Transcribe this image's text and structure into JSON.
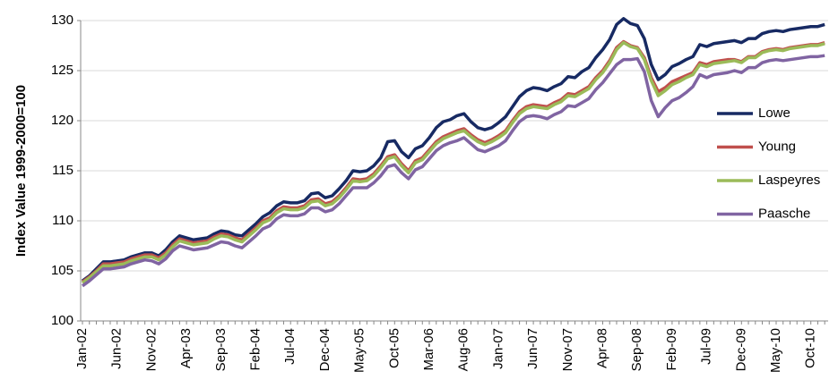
{
  "chart_data": {
    "type": "line",
    "y_label": "Index Value 1999-2000=100",
    "categories": [
      "Jan-02",
      null,
      null,
      null,
      null,
      "Jun-02",
      null,
      null,
      null,
      null,
      "Nov-02",
      null,
      null,
      null,
      null,
      "Apr-03",
      null,
      null,
      null,
      null,
      "Sep-03",
      null,
      null,
      null,
      null,
      "Feb-04",
      null,
      null,
      null,
      null,
      "Jul-04",
      null,
      null,
      null,
      null,
      "Dec-04",
      null,
      null,
      null,
      null,
      "May-05",
      null,
      null,
      null,
      null,
      "Oct-05",
      null,
      null,
      null,
      null,
      "Mar-06",
      null,
      null,
      null,
      null,
      "Aug-06",
      null,
      null,
      null,
      null,
      "Jan-07",
      null,
      null,
      null,
      null,
      "Jun-07",
      null,
      null,
      null,
      null,
      "Nov-07",
      null,
      null,
      null,
      null,
      "Apr-08",
      null,
      null,
      null,
      null,
      "Sep-08",
      null,
      null,
      null,
      null,
      "Feb-09",
      null,
      null,
      null,
      null,
      "Jul-09",
      null,
      null,
      null,
      null,
      "Dec-09",
      null,
      null,
      null,
      null,
      "May-10",
      null,
      null,
      null,
      null,
      "Oct-10",
      null,
      null
    ],
    "series": [
      {
        "name": "Lowe",
        "color": "#172a63",
        "values": [
          104.0,
          104.5,
          105.2,
          105.9,
          105.9,
          106.0,
          106.1,
          106.4,
          106.6,
          106.8,
          106.8,
          106.5,
          107.1,
          107.9,
          108.5,
          108.3,
          108.1,
          108.2,
          108.3,
          108.7,
          109.0,
          108.9,
          108.6,
          108.5,
          109.1,
          109.7,
          110.4,
          110.8,
          111.5,
          111.9,
          111.8,
          111.8,
          112.0,
          112.7,
          112.8,
          112.3,
          112.5,
          113.2,
          114.0,
          115.0,
          114.9,
          115.0,
          115.5,
          116.3,
          117.9,
          118.0,
          116.9,
          116.3,
          117.2,
          117.5,
          118.3,
          119.3,
          119.9,
          120.1,
          120.5,
          120.7,
          119.9,
          119.3,
          119.1,
          119.3,
          119.8,
          120.4,
          121.4,
          122.4,
          123.0,
          123.3,
          123.2,
          123.0,
          123.4,
          123.7,
          124.4,
          124.3,
          124.9,
          125.3,
          126.3,
          127.1,
          128.1,
          129.6,
          130.2,
          129.7,
          129.5,
          128.2,
          125.6,
          124.1,
          124.6,
          125.4,
          125.7,
          126.1,
          126.4,
          127.6,
          127.4,
          127.7,
          127.8,
          127.9,
          128.0,
          127.8,
          128.2,
          128.2,
          128.7,
          128.9,
          129.0,
          128.9,
          129.1,
          129.2,
          129.3,
          129.4,
          129.4,
          129.6
        ]
      },
      {
        "name": "Young",
        "color": "#c0504d",
        "values": [
          103.9,
          104.4,
          105.0,
          105.7,
          105.7,
          105.8,
          105.9,
          106.2,
          106.4,
          106.6,
          106.6,
          106.3,
          106.8,
          107.6,
          108.2,
          108.0,
          107.8,
          107.9,
          108.0,
          108.4,
          108.7,
          108.6,
          108.3,
          108.1,
          108.7,
          109.3,
          110.0,
          110.3,
          111.0,
          111.4,
          111.3,
          111.3,
          111.5,
          112.1,
          112.2,
          111.7,
          111.9,
          112.5,
          113.3,
          114.2,
          114.1,
          114.2,
          114.7,
          115.5,
          116.4,
          116.6,
          115.7,
          115.0,
          116.0,
          116.3,
          117.1,
          117.9,
          118.4,
          118.7,
          119.0,
          119.2,
          118.6,
          118.1,
          117.8,
          118.1,
          118.5,
          119.0,
          120.0,
          120.9,
          121.4,
          121.6,
          121.5,
          121.4,
          121.8,
          122.1,
          122.7,
          122.6,
          123.0,
          123.4,
          124.3,
          125.0,
          126.0,
          127.3,
          127.9,
          127.5,
          127.3,
          126.3,
          124.3,
          122.9,
          123.3,
          123.9,
          124.2,
          124.5,
          124.8,
          125.8,
          125.6,
          125.9,
          126.0,
          126.1,
          126.1,
          125.9,
          126.4,
          126.4,
          126.9,
          127.1,
          127.2,
          127.1,
          127.3,
          127.4,
          127.5,
          127.6,
          127.6,
          127.8
        ]
      },
      {
        "name": "Laspeyres",
        "color": "#9bbb59",
        "values": [
          103.8,
          104.3,
          104.9,
          105.5,
          105.5,
          105.6,
          105.7,
          106.0,
          106.2,
          106.4,
          106.4,
          106.1,
          106.6,
          107.4,
          108.0,
          107.8,
          107.6,
          107.7,
          107.8,
          108.2,
          108.5,
          108.4,
          108.1,
          107.9,
          108.5,
          109.1,
          109.8,
          110.1,
          110.8,
          111.2,
          111.1,
          111.1,
          111.3,
          111.9,
          112.0,
          111.5,
          111.7,
          112.3,
          113.1,
          114.0,
          113.9,
          114.0,
          114.5,
          115.3,
          116.2,
          116.4,
          115.5,
          114.8,
          115.8,
          116.1,
          116.9,
          117.7,
          118.2,
          118.5,
          118.8,
          119.0,
          118.4,
          117.9,
          117.6,
          117.9,
          118.3,
          118.8,
          119.8,
          120.7,
          121.2,
          121.4,
          121.3,
          121.2,
          121.6,
          121.9,
          122.5,
          122.4,
          122.8,
          123.2,
          124.1,
          124.8,
          125.8,
          127.1,
          127.8,
          127.4,
          127.2,
          126.1,
          124.0,
          122.5,
          123.0,
          123.6,
          123.9,
          124.3,
          124.6,
          125.6,
          125.4,
          125.7,
          125.8,
          125.9,
          126.0,
          125.8,
          126.3,
          126.3,
          126.8,
          127.0,
          127.1,
          127.0,
          127.2,
          127.3,
          127.4,
          127.5,
          127.5,
          127.7
        ]
      },
      {
        "name": "Paasche",
        "color": "#8064a2",
        "values": [
          103.5,
          104.0,
          104.6,
          105.2,
          105.2,
          105.3,
          105.4,
          105.7,
          105.9,
          106.1,
          106.0,
          105.7,
          106.2,
          107.0,
          107.5,
          107.3,
          107.1,
          107.2,
          107.3,
          107.6,
          107.9,
          107.8,
          107.5,
          107.3,
          107.9,
          108.5,
          109.2,
          109.5,
          110.2,
          110.6,
          110.5,
          110.5,
          110.7,
          111.3,
          111.3,
          110.9,
          111.1,
          111.7,
          112.5,
          113.3,
          113.3,
          113.3,
          113.8,
          114.5,
          115.4,
          115.6,
          114.8,
          114.2,
          115.1,
          115.4,
          116.2,
          117.0,
          117.5,
          117.8,
          118.0,
          118.3,
          117.7,
          117.1,
          116.9,
          117.2,
          117.5,
          118.0,
          119.0,
          119.9,
          120.4,
          120.5,
          120.4,
          120.2,
          120.6,
          120.9,
          121.5,
          121.4,
          121.8,
          122.2,
          123.1,
          123.8,
          124.7,
          125.6,
          126.1,
          126.1,
          126.2,
          124.9,
          122.0,
          120.4,
          121.3,
          122.0,
          122.3,
          122.8,
          123.4,
          124.6,
          124.3,
          124.6,
          124.7,
          124.8,
          125.0,
          124.8,
          125.3,
          125.3,
          125.8,
          126.0,
          126.1,
          126.0,
          126.1,
          126.2,
          126.3,
          126.4,
          126.4,
          126.5
        ]
      }
    ],
    "ylim": [
      100,
      130
    ],
    "yticks": [
      100,
      105,
      110,
      115,
      120,
      125,
      130
    ],
    "grid": true,
    "legend": "right"
  }
}
